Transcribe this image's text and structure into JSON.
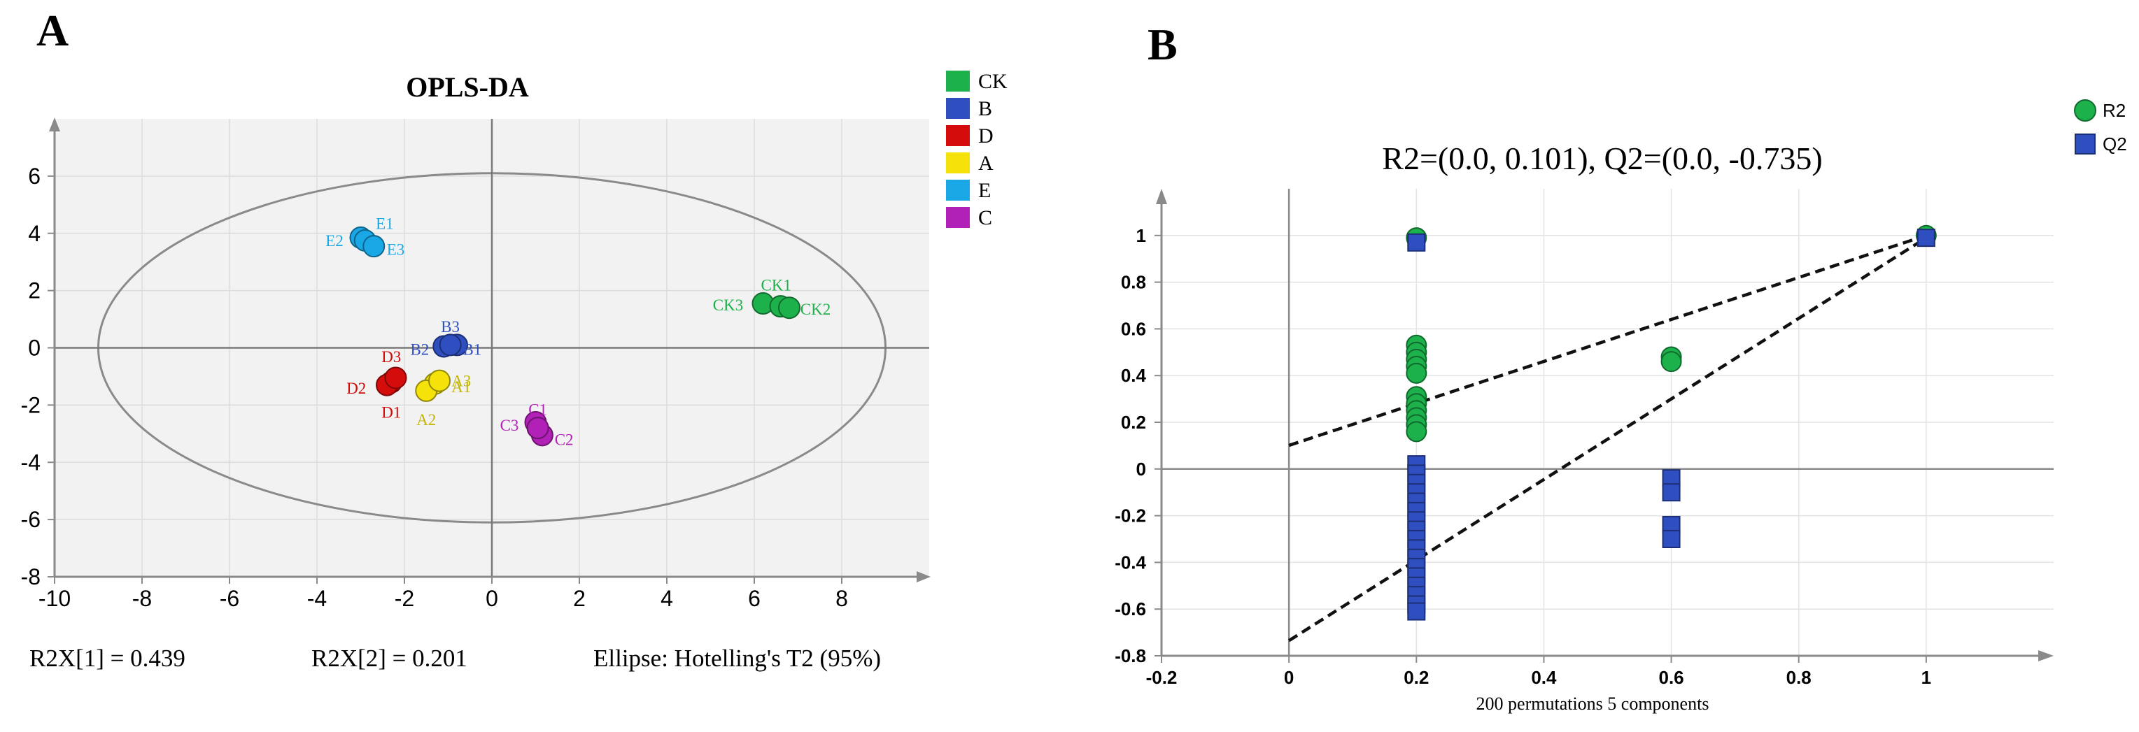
{
  "panels": {
    "a": {
      "letter": "A"
    },
    "b": {
      "letter": "B"
    }
  },
  "colors": {
    "CK": "#1db14b",
    "B": "#2f4fc1",
    "D": "#d40c0c",
    "A": "#f4e20a",
    "E": "#19a7e6",
    "C": "#b221b7",
    "R2": "#1db14b",
    "Q2": "#2f4fc1",
    "plot_bg": "#f2f2f2",
    "axis": "#8a8a8a",
    "ellipse": "#8a8a8a"
  },
  "chart_data": [
    {
      "id": "a",
      "type": "scatter",
      "title": "OPLS-DA",
      "xlim": [
        -10,
        10
      ],
      "ylim": [
        -8,
        8
      ],
      "xticks": [
        -10,
        -8,
        -6,
        -4,
        -2,
        0,
        2,
        4,
        6,
        8
      ],
      "yticks": [
        -8,
        -6,
        -4,
        -2,
        0,
        2,
        4,
        6
      ],
      "legend": [
        "CK",
        "B",
        "D",
        "A",
        "E",
        "C"
      ],
      "legend_position": "right",
      "ellipse": {
        "cx": 0,
        "cy": 0,
        "rx": 9.0,
        "ry": 6.1
      },
      "groups": [
        {
          "name": "E",
          "points": [
            {
              "label": "E1",
              "x": -3.0,
              "y": 3.85
            },
            {
              "label": "E2",
              "x": -2.9,
              "y": 3.75
            },
            {
              "label": "E3",
              "x": -2.7,
              "y": 3.55
            }
          ]
        },
        {
          "name": "CK",
          "points": [
            {
              "label": "CK1",
              "x": 6.2,
              "y": 1.55
            },
            {
              "label": "CK2",
              "x": 6.6,
              "y": 1.45
            },
            {
              "label": "CK3",
              "x": 6.8,
              "y": 1.4
            }
          ]
        },
        {
          "name": "B",
          "points": [
            {
              "label": "B1",
              "x": -0.8,
              "y": 0.1
            },
            {
              "label": "B2",
              "x": -1.1,
              "y": 0.05
            },
            {
              "label": "B3",
              "x": -0.95,
              "y": 0.1
            }
          ]
        },
        {
          "name": "D",
          "points": [
            {
              "label": "D1",
              "x": -2.3,
              "y": -1.2
            },
            {
              "label": "D2",
              "x": -2.4,
              "y": -1.3
            },
            {
              "label": "D3",
              "x": -2.2,
              "y": -1.05
            }
          ]
        },
        {
          "name": "A",
          "points": [
            {
              "label": "A1",
              "x": -1.3,
              "y": -1.25
            },
            {
              "label": "A2",
              "x": -1.5,
              "y": -1.5
            },
            {
              "label": "A3",
              "x": -1.2,
              "y": -1.15
            }
          ]
        },
        {
          "name": "C",
          "points": [
            {
              "label": "C1",
              "x": 1.0,
              "y": -2.6
            },
            {
              "label": "C2",
              "x": 1.15,
              "y": -3.05
            },
            {
              "label": "C3",
              "x": 1.05,
              "y": -2.8
            }
          ]
        }
      ],
      "point_labels": [
        {
          "text": "E1",
          "x": -2.45,
          "y": 4.35,
          "group": "E"
        },
        {
          "text": "E2",
          "x": -3.6,
          "y": 3.75,
          "group": "E"
        },
        {
          "text": "E3",
          "x": -2.2,
          "y": 3.45,
          "group": "E"
        },
        {
          "text": "CK1",
          "x": 6.5,
          "y": 2.2,
          "group": "CK"
        },
        {
          "text": "CK2",
          "x": 7.4,
          "y": 1.35,
          "group": "CK"
        },
        {
          "text": "CK3",
          "x": 5.4,
          "y": 1.5,
          "group": "CK"
        },
        {
          "text": "B3",
          "x": -0.95,
          "y": 0.75,
          "group": "B"
        },
        {
          "text": "B2",
          "x": -1.65,
          "y": -0.05,
          "group": "B"
        },
        {
          "text": "B1",
          "x": -0.45,
          "y": -0.05,
          "group": "B"
        },
        {
          "text": "D3",
          "x": -2.3,
          "y": -0.3,
          "group": "D"
        },
        {
          "text": "D2",
          "x": -3.1,
          "y": -1.4,
          "group": "D"
        },
        {
          "text": "D1",
          "x": -2.3,
          "y": -2.25,
          "group": "D"
        },
        {
          "text": "A3",
          "x": -0.7,
          "y": -1.15,
          "group": "A"
        },
        {
          "text": "A1",
          "x": -0.7,
          "y": -1.35,
          "group": "A"
        },
        {
          "text": "A2",
          "x": -1.5,
          "y": -2.5,
          "group": "A"
        },
        {
          "text": "C1",
          "x": 1.05,
          "y": -2.15,
          "group": "C"
        },
        {
          "text": "C3",
          "x": 0.4,
          "y": -2.7,
          "group": "C"
        },
        {
          "text": "C2",
          "x": 1.65,
          "y": -3.2,
          "group": "C"
        }
      ],
      "footer": {
        "r2x1": "R2X[1] = 0.439",
        "r2x2": "R2X[2] = 0.201",
        "ellipse_label": "Ellipse: Hotelling's T2 (95%)"
      }
    },
    {
      "id": "b",
      "type": "scatter",
      "title": "R2=(0.0, 0.101), Q2=(0.0, -0.735)",
      "xlabel": "200 permutations 5 components",
      "xlim": [
        -0.2,
        1.2
      ],
      "ylim": [
        -0.8,
        1.2
      ],
      "xticks": [
        -0.2,
        0,
        0.2,
        0.4,
        0.6,
        0.8,
        1
      ],
      "yticks": [
        -0.8,
        -0.6,
        -0.4,
        -0.2,
        0,
        0.2,
        0.4,
        0.6,
        0.8,
        1
      ],
      "legend": [
        "R2",
        "Q2"
      ],
      "legend_position": "top-right",
      "series": [
        {
          "name": "R2",
          "marker": "circle",
          "points": [
            [
              0.2,
              0.99
            ],
            [
              0.2,
              0.53
            ],
            [
              0.2,
              0.5
            ],
            [
              0.2,
              0.47
            ],
            [
              0.2,
              0.44
            ],
            [
              0.2,
              0.41
            ],
            [
              0.2,
              0.31
            ],
            [
              0.2,
              0.28
            ],
            [
              0.2,
              0.25
            ],
            [
              0.2,
              0.22
            ],
            [
              0.2,
              0.19
            ],
            [
              0.2,
              0.16
            ],
            [
              0.6,
              0.48
            ],
            [
              0.6,
              0.46
            ],
            [
              1.0,
              1.0
            ]
          ]
        },
        {
          "name": "Q2",
          "marker": "square",
          "points": [
            [
              0.2,
              0.97
            ],
            [
              0.2,
              0.02
            ],
            [
              0.2,
              -0.02
            ],
            [
              0.2,
              -0.06
            ],
            [
              0.2,
              -0.1
            ],
            [
              0.2,
              -0.14
            ],
            [
              0.2,
              -0.18
            ],
            [
              0.2,
              -0.22
            ],
            [
              0.2,
              -0.26
            ],
            [
              0.2,
              -0.3
            ],
            [
              0.2,
              -0.34
            ],
            [
              0.2,
              -0.38
            ],
            [
              0.2,
              -0.42
            ],
            [
              0.2,
              -0.46
            ],
            [
              0.2,
              -0.5
            ],
            [
              0.2,
              -0.54
            ],
            [
              0.2,
              -0.58
            ],
            [
              0.2,
              -0.61
            ],
            [
              0.6,
              -0.04
            ],
            [
              0.6,
              -0.1
            ],
            [
              0.6,
              -0.24
            ],
            [
              0.6,
              -0.3
            ],
            [
              1.0,
              0.99
            ]
          ]
        }
      ],
      "regression_lines": [
        {
          "name": "R2",
          "from": [
            0,
            0.101
          ],
          "to": [
            1,
            1.0
          ]
        },
        {
          "name": "Q2",
          "from": [
            0,
            -0.735
          ],
          "to": [
            1,
            0.99
          ]
        }
      ]
    }
  ]
}
